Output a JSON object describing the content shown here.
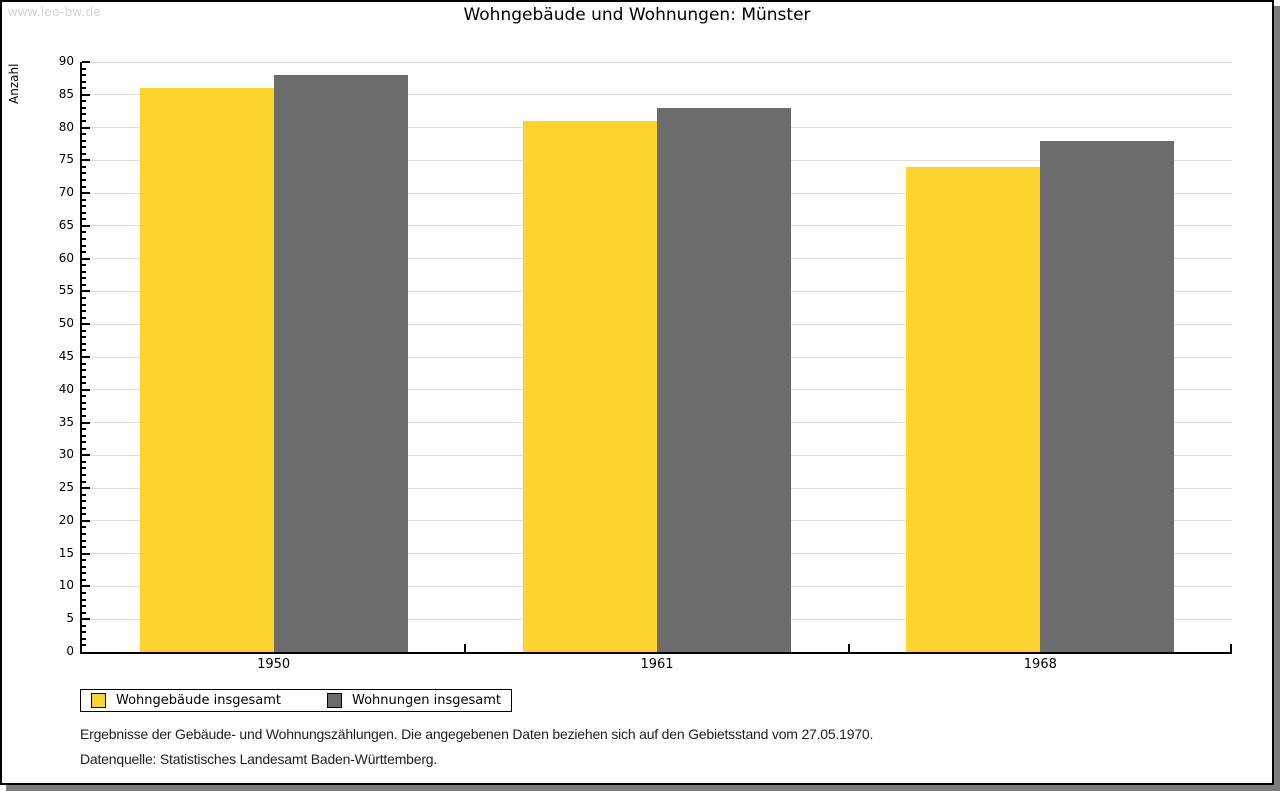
{
  "watermark": "www.leo-bw.de",
  "chart_data": {
    "type": "bar",
    "title": "Wohngebäude und Wohnungen: Münster",
    "ylabel": "Anzahl",
    "xlabel": "",
    "categories": [
      "1950",
      "1961",
      "1968"
    ],
    "series": [
      {
        "name": "Wohngebäude insgesamt",
        "color": "#fcd32f",
        "values": [
          86,
          81,
          74
        ]
      },
      {
        "name": "Wohnungen insgesamt",
        "color": "#6c6c6c",
        "values": [
          88,
          83,
          78
        ]
      }
    ],
    "ylim": [
      0,
      90
    ],
    "y_major_step": 5,
    "y_minor_step": 1,
    "grid": true,
    "gridline_color": "#e0e0e0",
    "legend_position": "bottom-left"
  },
  "footer": {
    "line1": "Ergebnisse der Gebäude- und Wohnungszählungen. Die angegebenen Daten beziehen sich auf den Gebietsstand vom 27.05.1970.",
    "line2": "Datenquelle: Statistisches Landesamt Baden-Württemberg."
  },
  "colors": {
    "axis": "#000000",
    "watermark": "#d3d3d3",
    "frame_shadow": "#7d7d7d"
  }
}
